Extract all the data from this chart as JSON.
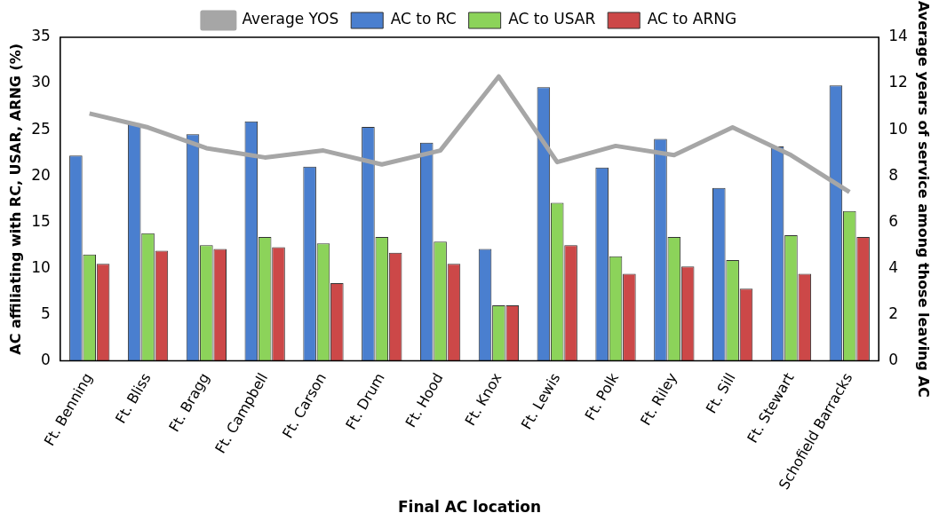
{
  "chart_data": {
    "type": "bar",
    "xlabel": "Final AC location",
    "ylabel": "AC affiliating with RC, USAR, ARNG (%)",
    "y2label": "Average years of service among those leaving AC",
    "categories": [
      "Ft. Benning",
      "Ft. Bliss",
      "Ft. Bragg",
      "Ft. Campbell",
      "Ft. Carson",
      "Ft. Drum",
      "Ft. Hood",
      "Ft. Knox",
      "Ft. Lewis",
      "Ft. Polk",
      "Ft. Riley",
      "Ft. Sill",
      "Ft. Stewart",
      "Schofield Barracks"
    ],
    "series": [
      {
        "name": "AC to RC",
        "color": "#4a7fcf",
        "values": [
          22.2,
          25.7,
          24.5,
          25.9,
          21.0,
          25.3,
          23.6,
          12.1,
          29.6,
          20.9,
          24.0,
          18.7,
          23.2,
          29.8
        ]
      },
      {
        "name": "AC to USAR",
        "color": "#8cd35a",
        "values": [
          11.5,
          13.8,
          12.5,
          13.4,
          12.7,
          13.4,
          12.9,
          6.0,
          17.1,
          11.3,
          13.4,
          10.9,
          13.6,
          16.2
        ]
      },
      {
        "name": "AC to ARNG",
        "color": "#cc4848",
        "values": [
          10.5,
          11.9,
          12.1,
          12.3,
          8.4,
          11.7,
          10.5,
          6.0,
          12.5,
          9.4,
          10.2,
          7.8,
          9.4,
          13.4
        ]
      },
      {
        "name": "Average YOS",
        "type": "line",
        "axis": "y2",
        "color": "#a6a6a6",
        "values": [
          10.7,
          10.1,
          9.2,
          8.8,
          9.1,
          8.5,
          9.1,
          12.3,
          8.6,
          9.3,
          8.9,
          10.1,
          8.9,
          7.3
        ]
      }
    ],
    "ylim": [
      0,
      35
    ],
    "yticks": [
      0,
      5,
      10,
      15,
      20,
      25,
      30,
      35
    ],
    "y2lim": [
      0,
      14
    ],
    "y2ticks": [
      0,
      2,
      4,
      6,
      8,
      10,
      12,
      14
    ],
    "grid": false,
    "legend": "top",
    "marker": "none",
    "line_style": "solid"
  }
}
